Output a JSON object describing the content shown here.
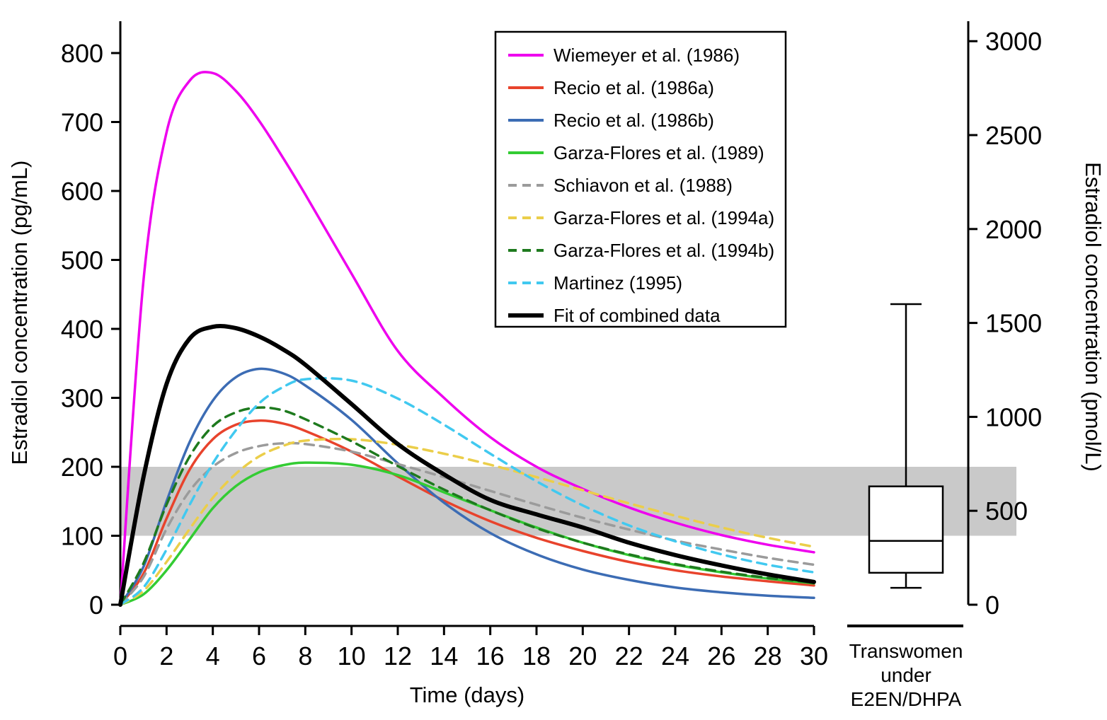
{
  "chart_data": {
    "type": "line",
    "title": "",
    "x_axis": {
      "label": "Time (days)",
      "min": 0,
      "max": 30,
      "ticks": [
        0,
        2,
        4,
        6,
        8,
        10,
        12,
        14,
        16,
        18,
        20,
        22,
        24,
        26,
        28,
        30
      ]
    },
    "y_left": {
      "label": "Estradiol concentration (pg/mL)",
      "min": 0,
      "ticks": [
        0,
        100,
        200,
        300,
        400,
        500,
        600,
        700,
        800
      ]
    },
    "y_right": {
      "label": "Estradiol concentration (pmol/L)",
      "min": 0,
      "ticks": [
        0,
        500,
        1000,
        1500,
        2000,
        2500,
        3000
      ],
      "pmol_per_pg": 3.671
    },
    "reference_band": {
      "from_pg": 100,
      "to_pg": 200,
      "color": "#C9C9C9"
    },
    "x_sample_days": [
      0,
      1,
      2,
      3,
      4,
      5,
      6,
      7,
      8,
      10,
      12,
      14,
      16,
      18,
      20,
      22,
      24,
      26,
      28,
      30
    ],
    "series": [
      {
        "key": "wiemeyer-1986",
        "name": "Wiemeyer et al. (1986)",
        "color": "#EE00EE",
        "style": "solid",
        "width": 3.5,
        "values": [
          0,
          470,
          685,
          760,
          771,
          745,
          702,
          650,
          595,
          480,
          368,
          300,
          243,
          200,
          168,
          141,
          119,
          101,
          87,
          76
        ]
      },
      {
        "key": "recio-1986a",
        "name": "Recio et al. (1986a)",
        "color": "#E8432C",
        "style": "solid",
        "width": 3.5,
        "values": [
          0,
          45,
          125,
          196,
          240,
          261,
          267,
          263,
          252,
          222,
          186,
          151,
          121,
          97,
          78,
          62,
          50,
          41,
          34,
          28
        ]
      },
      {
        "key": "recio-1986b",
        "name": "Recio et al. (1986b)",
        "color": "#3C6CB4",
        "style": "solid",
        "width": 3.5,
        "values": [
          0,
          55,
          150,
          236,
          296,
          330,
          342,
          336,
          318,
          268,
          205,
          148,
          104,
          73,
          51,
          36,
          25,
          18,
          13,
          10
        ]
      },
      {
        "key": "garza-flores-1989",
        "name": "Garza-Flores et al. (1989)",
        "color": "#33CC33",
        "style": "solid",
        "width": 3.5,
        "values": [
          0,
          15,
          50,
          95,
          140,
          172,
          192,
          202,
          206,
          203,
          188,
          163,
          137,
          112,
          90,
          72,
          58,
          47,
          38,
          31
        ]
      },
      {
        "key": "schiavon-1988",
        "name": "Schiavon et al. (1988)",
        "color": "#9B9B9B",
        "style": "dashed",
        "width": 3.5,
        "values": [
          0,
          40,
          110,
          165,
          200,
          220,
          230,
          234,
          233,
          222,
          204,
          185,
          165,
          145,
          126,
          109,
          93,
          80,
          68,
          58
        ]
      },
      {
        "key": "garza-flores-1994a",
        "name": "Garza-Flores et al. (1994a)",
        "color": "#EBCE4A",
        "style": "dashed",
        "width": 3.5,
        "values": [
          0,
          20,
          62,
          110,
          155,
          190,
          215,
          230,
          238,
          240,
          232,
          219,
          203,
          185,
          166,
          147,
          129,
          112,
          97,
          84
        ]
      },
      {
        "key": "garza-flores-1994b",
        "name": "Garza-Flores et al. (1994b)",
        "color": "#1E7A1E",
        "style": "dashed",
        "width": 3.5,
        "values": [
          0,
          60,
          145,
          215,
          259,
          279,
          286,
          282,
          269,
          237,
          201,
          167,
          137,
          111,
          90,
          73,
          59,
          48,
          39,
          32
        ]
      },
      {
        "key": "martinez-1995",
        "name": "Martinez (1995)",
        "color": "#41C9F0",
        "style": "dashed",
        "width": 3.5,
        "values": [
          0,
          25,
          80,
          145,
          205,
          253,
          292,
          315,
          327,
          325,
          299,
          261,
          219,
          179,
          144,
          115,
          92,
          73,
          58,
          47
        ]
      },
      {
        "key": "fit-combined",
        "name": "Fit of combined data",
        "color": "#000000",
        "style": "solid",
        "width": 6,
        "values": [
          0,
          185,
          320,
          386,
          403,
          401,
          389,
          371,
          348,
          291,
          233,
          189,
          152,
          131,
          112,
          90,
          72,
          57,
          44,
          33
        ]
      }
    ],
    "legend": {
      "position": "top-center"
    },
    "boxplot": {
      "unit": "pmol/L",
      "whisker_high": 1600,
      "q3": 630,
      "median": 340,
      "q1": 170,
      "whisker_low": 90,
      "label_lines": [
        "Transwomen",
        "under",
        "E2EN/DHPA"
      ]
    }
  }
}
